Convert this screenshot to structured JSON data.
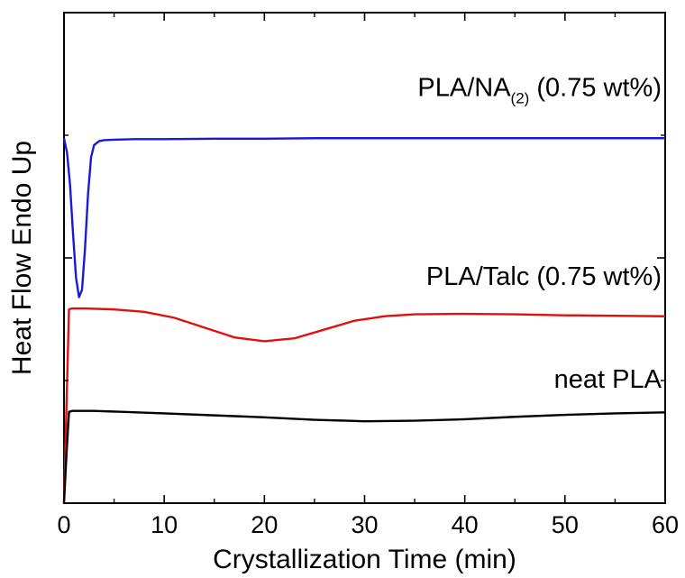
{
  "chart_data": {
    "type": "line",
    "xlabel": "Crystallization Time (min)",
    "ylabel": "Heat Flow Endo Up",
    "xlim": [
      0,
      60
    ],
    "x_ticks": [
      0,
      10,
      20,
      30,
      40,
      50,
      60
    ],
    "x_tick_labels": [
      "0",
      "10",
      "20",
      "30",
      "40",
      "50",
      "60"
    ],
    "ylim": [
      0,
      100
    ],
    "y_tick_labels_shown": false,
    "grid": false,
    "series": [
      {
        "name": "PLA/NA(2) (0.75 wt%)",
        "label_main": "PLA/NA",
        "label_sub": "(2)",
        "label_tail": " (0.75 wt%)",
        "color": "#1a1adc",
        "x": [
          0,
          0.3,
          0.6,
          0.9,
          1.2,
          1.5,
          1.8,
          2.1,
          2.4,
          2.7,
          3.0,
          3.5,
          4.0,
          5,
          7,
          10,
          15,
          20,
          25,
          30,
          40,
          50,
          60
        ],
        "y": [
          74.4,
          71.5,
          65.0,
          55.0,
          46.0,
          42.0,
          43.5,
          52.0,
          63.0,
          70.5,
          73.0,
          73.8,
          74.0,
          74.1,
          74.2,
          74.2,
          74.3,
          74.3,
          74.4,
          74.4,
          74.4,
          74.4,
          74.4
        ]
      },
      {
        "name": "PLA/Talc (0.75 wt%)",
        "color": "#e01010",
        "x": [
          0,
          0.25,
          0.5,
          0.8,
          2,
          5,
          8,
          11,
          14,
          17,
          20,
          23,
          26,
          29,
          32,
          35,
          40,
          45,
          50,
          55,
          60
        ],
        "y": [
          0,
          20,
          39.5,
          39.7,
          39.7,
          39.5,
          39.0,
          37.8,
          35.8,
          33.8,
          33.0,
          33.6,
          35.4,
          37.2,
          38.1,
          38.5,
          38.6,
          38.5,
          38.3,
          38.2,
          38.1
        ]
      },
      {
        "name": "neat PLA",
        "color": "#000000",
        "x": [
          0,
          0.25,
          0.5,
          0.8,
          3,
          6,
          10,
          15,
          20,
          25,
          30,
          35,
          40,
          45,
          50,
          55,
          60
        ],
        "y": [
          0,
          10,
          18.6,
          18.8,
          18.8,
          18.6,
          18.3,
          17.9,
          17.5,
          17.0,
          16.7,
          16.8,
          17.1,
          17.6,
          18.0,
          18.3,
          18.5
        ]
      }
    ],
    "annotations": [
      {
        "series": 0,
        "x": 60,
        "y": 83
      },
      {
        "series": 1,
        "x": 60,
        "y": 44.5
      },
      {
        "series": 2,
        "x": 60,
        "y": 23.5
      }
    ]
  }
}
